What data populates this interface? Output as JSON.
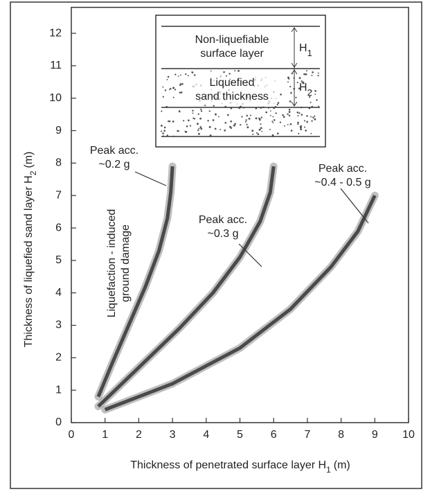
{
  "chart_data": {
    "type": "line",
    "xlabel": {
      "text": "Thickness of penetrated surface layer H",
      "sub": "1",
      "unit": "(m)"
    },
    "ylabel": {
      "text": "Thickness of liquefied sand layer  H",
      "sub": "2",
      "unit": "(m)"
    },
    "xlim": [
      0,
      10
    ],
    "ylim": [
      0,
      12.8
    ],
    "xticks": [
      0,
      1,
      2,
      3,
      4,
      5,
      6,
      7,
      8,
      9,
      10
    ],
    "yticks": [
      0,
      1,
      2,
      3,
      4,
      5,
      6,
      7,
      8,
      9,
      10,
      11,
      12
    ],
    "series": [
      {
        "label": [
          "Peak acc.",
          "~0.2 g"
        ],
        "color": "#4a4a4a",
        "x": [
          0.8,
          1.2,
          1.7,
          2.2,
          2.6,
          2.85,
          2.95,
          3.0
        ],
        "values": [
          0.8,
          1.8,
          3.0,
          4.2,
          5.3,
          6.3,
          7.1,
          7.9
        ]
      },
      {
        "label": [
          "Peak acc.",
          "~0.3 g"
        ],
        "color": "#4a4a4a",
        "x": [
          0.8,
          2.0,
          3.2,
          4.2,
          5.0,
          5.6,
          5.9,
          6.0
        ],
        "values": [
          0.5,
          1.7,
          2.9,
          4.0,
          5.1,
          6.2,
          7.1,
          7.9
        ]
      },
      {
        "label": [
          "Peak acc.",
          "~0.4 - 0.5 g"
        ],
        "color": "#4a4a4a",
        "x": [
          1.0,
          3.0,
          5.0,
          6.5,
          7.7,
          8.5,
          9.0
        ],
        "values": [
          0.4,
          1.2,
          2.3,
          3.5,
          4.8,
          5.9,
          7.0
        ]
      }
    ],
    "region_label": [
      "Liquefaction - induced",
      "ground damage"
    ],
    "inset": {
      "top_layer": [
        "Non-liquefiable",
        "surface layer"
      ],
      "h1": {
        "text": "H",
        "sub": "1"
      },
      "sand_layer": [
        "Liquefied",
        "sand thickness"
      ],
      "h2": {
        "text": "H",
        "sub": "2"
      }
    }
  }
}
